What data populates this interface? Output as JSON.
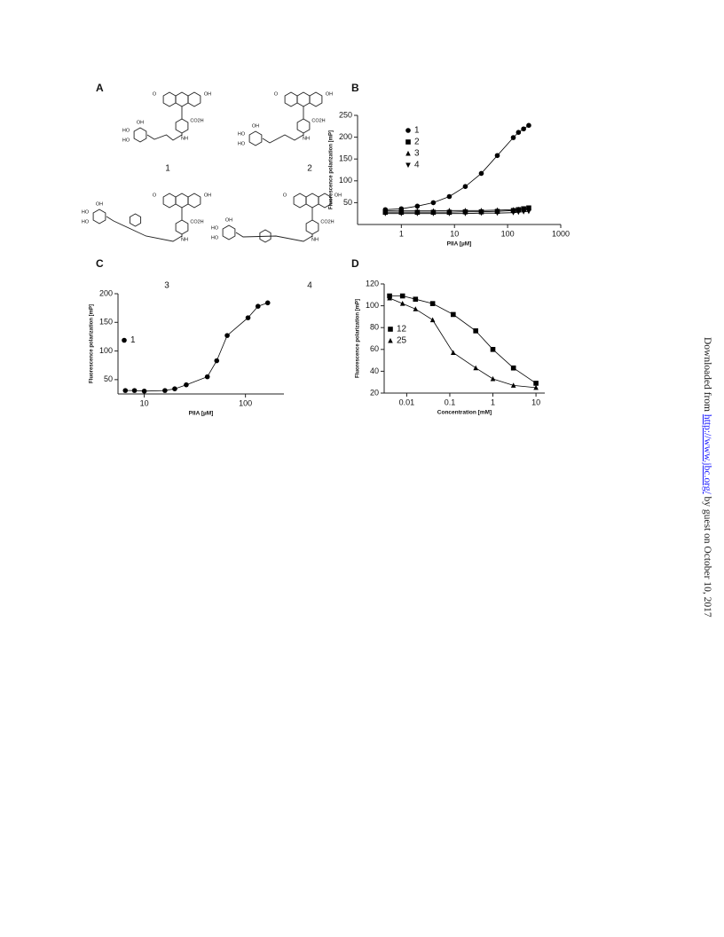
{
  "structures_panel": {
    "label": "A",
    "compounds": [
      {
        "label": "1",
        "atoms": [
          "O",
          "OH",
          "CO2H",
          "NH",
          "HO",
          "HO",
          "OH"
        ]
      },
      {
        "label": "2",
        "atoms": [
          "O",
          "OH",
          "CO2H",
          "NH",
          "HO",
          "HO",
          "OH"
        ]
      },
      {
        "label": "3",
        "atoms": [
          "O",
          "OH",
          "CO2H",
          "NH",
          "HO",
          "HO",
          "OH"
        ]
      },
      {
        "label": "4",
        "atoms": [
          "O",
          "OH",
          "CO2H",
          "NH",
          "HO",
          "HO",
          "OH"
        ]
      }
    ]
  },
  "chart_data": [
    {
      "type": "scatter",
      "panel": "B",
      "x_label": "PIIA [µM]",
      "y_label": "Fluorescence polarization [mP]",
      "log_x": true,
      "connected": true,
      "legend": "upper-left",
      "x": [
        0.5,
        1,
        2,
        4,
        8,
        16,
        32,
        64,
        128,
        160,
        200,
        250
      ],
      "series": [
        {
          "name": "1",
          "marker": "circle",
          "color": "#000000",
          "values": [
            34,
            36,
            42,
            50,
            64,
            87,
            117,
            158,
            199,
            211,
            219,
            227
          ]
        },
        {
          "name": "2",
          "marker": "square",
          "color": "#000000",
          "values": [
            28,
            28,
            28,
            28,
            28,
            29,
            29,
            30,
            32,
            34,
            36,
            38
          ]
        },
        {
          "name": "3",
          "marker": "triangle",
          "color": "#000000",
          "values": [
            31,
            31,
            31,
            31,
            32,
            32,
            32,
            33,
            34,
            35,
            36,
            37
          ]
        },
        {
          "name": "4",
          "marker": "triangle-down",
          "color": "#000000",
          "values": [
            25,
            25,
            25,
            25,
            25,
            25,
            26,
            26,
            27,
            28,
            29,
            30
          ]
        }
      ],
      "xlim": [
        0.15,
        1000
      ],
      "xticks": [
        1,
        10,
        100,
        1000
      ],
      "ylim": [
        0,
        250
      ],
      "yticks": [
        50,
        100,
        150,
        200,
        250
      ]
    },
    {
      "type": "scatter",
      "panel": "C",
      "x_label": "PIIA [µM]",
      "y_label": "Fluorescence polarization [mP]",
      "log_x": true,
      "connected": true,
      "legend": "center-left",
      "x": [
        6.5,
        8,
        10,
        16,
        20,
        26,
        42,
        52,
        66,
        106,
        133,
        166
      ],
      "series": [
        {
          "name": "1",
          "marker": "circle",
          "color": "#000000",
          "values": [
            31,
            31,
            30,
            31,
            34,
            41,
            55,
            83,
            127,
            158,
            178,
            184
          ]
        }
      ],
      "xlim": [
        5.5,
        240
      ],
      "xticks": [
        10,
        100
      ],
      "ylim": [
        25,
        200
      ],
      "yticks": [
        50,
        100,
        150,
        200
      ]
    },
    {
      "type": "scatter",
      "panel": "D",
      "x_label": "Concentration [mM]",
      "y_label": "Fluorescence polarization [mP]",
      "log_x": true,
      "connected": true,
      "legend": "center-left",
      "x": [
        0.004,
        0.008,
        0.016,
        0.04,
        0.12,
        0.4,
        1,
        3,
        10
      ],
      "series": [
        {
          "name": "12",
          "marker": "square",
          "color": "#000000",
          "values": [
            109,
            109,
            106,
            102,
            92,
            77,
            60,
            43,
            29
          ]
        },
        {
          "name": "25",
          "marker": "triangle",
          "color": "#000000",
          "values": [
            107,
            102,
            97,
            87,
            57,
            43,
            33,
            27,
            25
          ]
        }
      ],
      "xlim": [
        0.003,
        16
      ],
      "xticks": [
        0.01,
        0.1,
        1,
        10
      ],
      "ylim": [
        20,
        120
      ],
      "yticks": [
        20,
        40,
        60,
        80,
        100,
        120
      ]
    }
  ],
  "side_note": {
    "prefix": "Downloaded from",
    "link": "http://www.jbc.org/",
    "suffix": "by guest on October 10, 2017"
  }
}
